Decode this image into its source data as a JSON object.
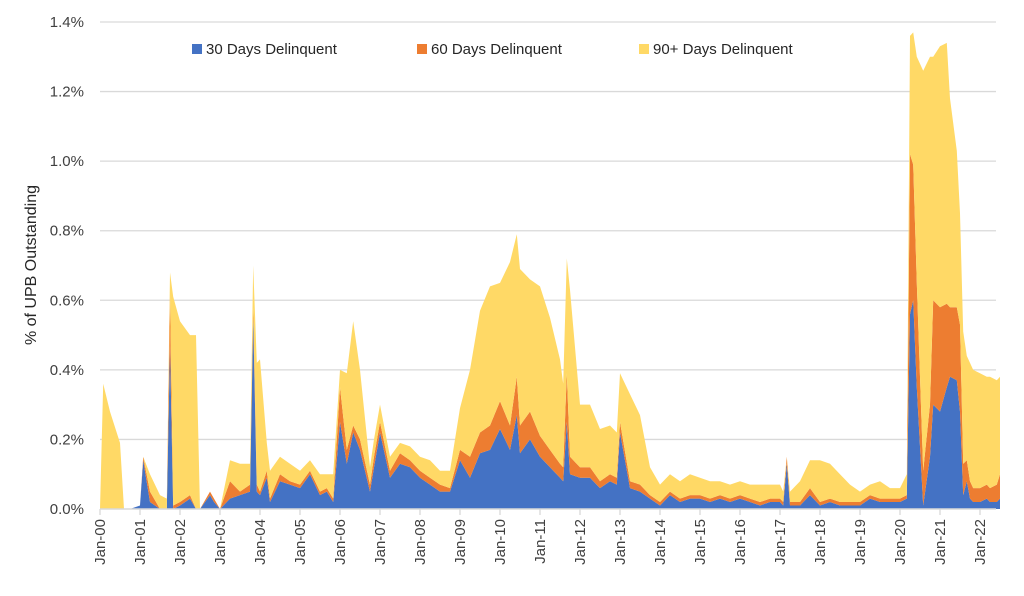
{
  "chart_data": {
    "type": "area",
    "stacked": true,
    "title": "",
    "xlabel": "",
    "ylabel": "% of UPB Outstanding",
    "ylim": [
      0,
      1.4
    ],
    "yticks": [
      0,
      0.2,
      0.4,
      0.6,
      0.8,
      1.0,
      1.2,
      1.4
    ],
    "ytick_labels": [
      "0.0%",
      "0.2%",
      "0.4%",
      "0.6%",
      "0.8%",
      "1.0%",
      "1.2%",
      "1.4%"
    ],
    "xtick_labels": [
      "Jan-00",
      "Jan-01",
      "Jan-02",
      "Jan-03",
      "Jan-04",
      "Jan-05",
      "Jan-06",
      "Jan-07",
      "Jan-08",
      "Jan-09",
      "Jan-10",
      "Jan-11",
      "Jan-12",
      "Jan-13",
      "Jan-14",
      "Jan-15",
      "Jan-16",
      "Jan-17",
      "Jan-18",
      "Jan-19",
      "Jan-20",
      "Jan-21",
      "Jan-22"
    ],
    "x_start_year": 2000,
    "x_end_year": 2022.5,
    "grid": true,
    "legend": "top-center",
    "x": [
      2000.0,
      2000.08,
      2000.25,
      2000.5,
      2000.6,
      2000.75,
      2001.0,
      2001.08,
      2001.25,
      2001.5,
      2001.67,
      2001.75,
      2001.83,
      2002.0,
      2002.25,
      2002.4,
      2002.5,
      2002.75,
      2002.85,
      2003.0,
      2003.25,
      2003.5,
      2003.75,
      2003.83,
      2003.92,
      2004.0,
      2004.17,
      2004.25,
      2004.5,
      2004.75,
      2005.0,
      2005.25,
      2005.5,
      2005.67,
      2005.83,
      2006.0,
      2006.17,
      2006.33,
      2006.5,
      2006.75,
      2006.85,
      2007.0,
      2007.25,
      2007.5,
      2007.75,
      2008.0,
      2008.25,
      2008.5,
      2008.75,
      2009.0,
      2009.25,
      2009.5,
      2009.75,
      2010.0,
      2010.25,
      2010.42,
      2010.5,
      2010.75,
      2011.0,
      2011.25,
      2011.5,
      2011.58,
      2011.67,
      2011.75,
      2012.0,
      2012.25,
      2012.5,
      2012.75,
      2012.92,
      2013.0,
      2013.25,
      2013.5,
      2013.75,
      2014.0,
      2014.25,
      2014.5,
      2014.75,
      2015.0,
      2015.25,
      2015.5,
      2015.75,
      2016.0,
      2016.25,
      2016.5,
      2016.75,
      2017.0,
      2017.08,
      2017.17,
      2017.25,
      2017.5,
      2017.75,
      2018.0,
      2018.25,
      2018.5,
      2018.75,
      2019.0,
      2019.25,
      2019.5,
      2019.75,
      2020.0,
      2020.17,
      2020.25,
      2020.33,
      2020.42,
      2020.58,
      2020.75,
      2020.83,
      2021.0,
      2021.17,
      2021.25,
      2021.42,
      2021.5,
      2021.58,
      2021.67,
      2021.75,
      2021.83,
      2022.0,
      2022.17,
      2022.25,
      2022.42,
      2022.5
    ],
    "series": [
      {
        "name": "30 Days Delinquent",
        "color": "#4472C4",
        "values": [
          0,
          0,
          0,
          0,
          0,
          0,
          0.01,
          0.14,
          0.02,
          0,
          0,
          0.47,
          0,
          0.01,
          0.03,
          0,
          0,
          0.04,
          0.02,
          0,
          0.03,
          0.04,
          0.05,
          0.55,
          0.05,
          0.04,
          0.09,
          0.02,
          0.08,
          0.07,
          0.06,
          0.1,
          0.04,
          0.05,
          0.02,
          0.25,
          0.13,
          0.22,
          0.17,
          0.05,
          0.12,
          0.22,
          0.09,
          0.13,
          0.12,
          0.09,
          0.07,
          0.05,
          0.05,
          0.14,
          0.09,
          0.16,
          0.17,
          0.23,
          0.17,
          0.27,
          0.16,
          0.2,
          0.15,
          0.12,
          0.09,
          0.08,
          0.25,
          0.1,
          0.09,
          0.09,
          0.06,
          0.08,
          0.07,
          0.22,
          0.06,
          0.05,
          0.03,
          0.01,
          0.04,
          0.02,
          0.03,
          0.03,
          0.02,
          0.03,
          0.02,
          0.03,
          0.02,
          0.01,
          0.02,
          0.02,
          0.01,
          0.13,
          0.01,
          0.01,
          0.04,
          0.01,
          0.02,
          0.01,
          0.01,
          0.01,
          0.03,
          0.02,
          0.02,
          0.02,
          0.03,
          0.56,
          0.6,
          0.35,
          0.01,
          0.15,
          0.3,
          0.28,
          0.35,
          0.38,
          0.37,
          0.28,
          0.04,
          0.08,
          0.03,
          0.02,
          0.02,
          0.03,
          0.02,
          0.02,
          0.03
        ]
      },
      {
        "name": "60 Days Delinquent",
        "color": "#ED7D31",
        "values": [
          0,
          0,
          0,
          0,
          0,
          0,
          0,
          0.01,
          0.03,
          0,
          0,
          0.15,
          0.01,
          0.01,
          0.01,
          0,
          0,
          0.01,
          0.01,
          0,
          0.05,
          0.01,
          0.02,
          0.03,
          0.02,
          0.01,
          0.02,
          0.01,
          0.02,
          0.01,
          0.01,
          0.01,
          0.01,
          0.01,
          0.01,
          0.1,
          0.04,
          0.02,
          0.03,
          0.02,
          0.03,
          0.03,
          0.02,
          0.03,
          0.02,
          0.02,
          0.02,
          0.02,
          0.01,
          0.03,
          0.06,
          0.06,
          0.07,
          0.08,
          0.07,
          0.11,
          0.08,
          0.08,
          0.06,
          0.05,
          0.04,
          0.04,
          0.14,
          0.05,
          0.03,
          0.03,
          0.02,
          0.02,
          0.02,
          0.03,
          0.02,
          0.02,
          0.01,
          0.01,
          0.01,
          0.01,
          0.01,
          0.01,
          0.01,
          0.01,
          0.01,
          0.01,
          0.01,
          0.01,
          0.01,
          0.01,
          0.01,
          0.02,
          0.01,
          0.01,
          0.02,
          0.01,
          0.01,
          0.01,
          0.01,
          0.01,
          0.01,
          0.01,
          0.01,
          0.01,
          0.01,
          0.46,
          0.39,
          0.3,
          0.1,
          0.15,
          0.3,
          0.3,
          0.24,
          0.2,
          0.21,
          0.25,
          0.09,
          0.06,
          0.05,
          0.04,
          0.04,
          0.04,
          0.04,
          0.05,
          0.07
        ]
      },
      {
        "name": "90+ Days Delinquent",
        "color": "#FFD966",
        "values": [
          0,
          0.36,
          0.28,
          0.19,
          0,
          0,
          0,
          0,
          0.05,
          0.04,
          0.03,
          0.06,
          0.6,
          0.52,
          0.46,
          0.5,
          0,
          0,
          0,
          0,
          0.06,
          0.08,
          0.06,
          0.12,
          0.35,
          0.38,
          0.08,
          0.08,
          0.05,
          0.05,
          0.04,
          0.03,
          0.05,
          0.04,
          0.07,
          0.05,
          0.22,
          0.3,
          0.2,
          0.05,
          0.05,
          0.05,
          0.04,
          0.03,
          0.04,
          0.04,
          0.05,
          0.04,
          0.05,
          0.12,
          0.25,
          0.35,
          0.4,
          0.34,
          0.47,
          0.41,
          0.45,
          0.38,
          0.43,
          0.38,
          0.3,
          0.24,
          0.33,
          0.48,
          0.18,
          0.18,
          0.15,
          0.14,
          0.13,
          0.14,
          0.25,
          0.2,
          0.08,
          0.05,
          0.05,
          0.05,
          0.06,
          0.05,
          0.05,
          0.04,
          0.04,
          0.04,
          0.04,
          0.05,
          0.04,
          0.04,
          0.03,
          0.0,
          0.03,
          0.06,
          0.08,
          0.12,
          0.1,
          0.08,
          0.05,
          0.03,
          0.03,
          0.05,
          0.03,
          0.03,
          0.06,
          0.34,
          0.38,
          0.65,
          1.15,
          1.0,
          0.7,
          0.75,
          0.75,
          0.6,
          0.45,
          0.32,
          0.38,
          0.3,
          0.34,
          0.34,
          0.33,
          0.31,
          0.32,
          0.3,
          0.28
        ]
      }
    ]
  }
}
